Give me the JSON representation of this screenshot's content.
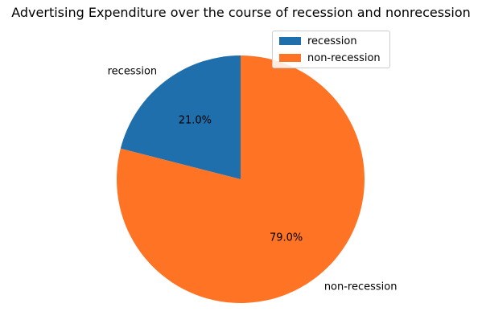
{
  "chart_data": {
    "type": "pie",
    "title": "Advertising Expenditure over the course of recession and nonrecession",
    "categories": [
      "recession",
      "non-recession"
    ],
    "values": [
      21.0,
      79.0
    ],
    "value_labels": [
      "21.0%",
      "79.0%"
    ],
    "colors": [
      "#1f6fad",
      "#ff7424"
    ],
    "legend": {
      "placement": "top-right",
      "entries": [
        "recession",
        "non-recession"
      ]
    },
    "start_angle": 90,
    "direction": "counterclockwise"
  }
}
